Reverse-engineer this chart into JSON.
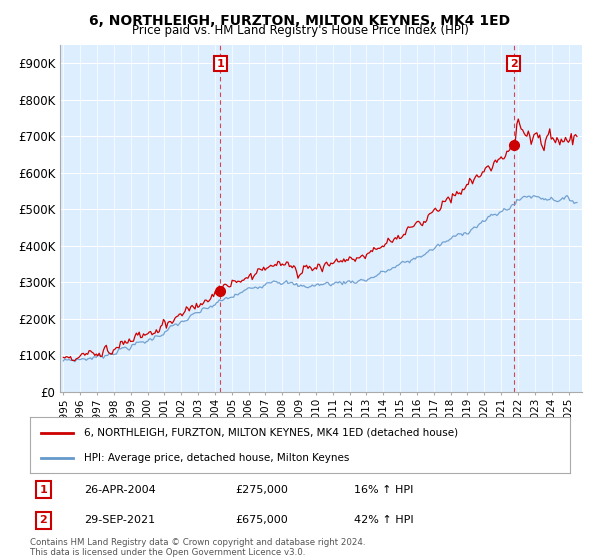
{
  "title": "6, NORTHLEIGH, FURZTON, MILTON KEYNES, MK4 1ED",
  "subtitle": "Price paid vs. HM Land Registry's House Price Index (HPI)",
  "ylabel_ticks": [
    "£0",
    "£100K",
    "£200K",
    "£300K",
    "£400K",
    "£500K",
    "£600K",
    "£700K",
    "£800K",
    "£900K"
  ],
  "ytick_values": [
    0,
    100000,
    200000,
    300000,
    400000,
    500000,
    600000,
    700000,
    800000,
    900000
  ],
  "ylim": [
    0,
    950000
  ],
  "x_start_year": 1995,
  "x_end_year": 2025,
  "sale1_year": 2004.32,
  "sale1_price": 275000,
  "sale1_label": "1",
  "sale1_date": "26-APR-2004",
  "sale1_hpi_pct": "16% ↑ HPI",
  "sale2_year": 2021.75,
  "sale2_price": 675000,
  "sale2_label": "2",
  "sale2_date": "29-SEP-2021",
  "sale2_hpi_pct": "42% ↑ HPI",
  "line_color_red": "#cc0000",
  "line_color_blue": "#6699cc",
  "dashed_line_color": "#cc0000",
  "annotation_box_edge_color": "#cc0000",
  "annotation_box_face_color": "#ffffff",
  "annotation_text_color": "#cc0000",
  "chart_bg_color": "#ddeeff",
  "background_color": "#ffffff",
  "grid_color": "#ffffff",
  "legend_label_red": "6, NORTHLEIGH, FURZTON, MILTON KEYNES, MK4 1ED (detached house)",
  "legend_label_blue": "HPI: Average price, detached house, Milton Keynes",
  "footer": "Contains HM Land Registry data © Crown copyright and database right 2024.\nThis data is licensed under the Open Government Licence v3.0."
}
